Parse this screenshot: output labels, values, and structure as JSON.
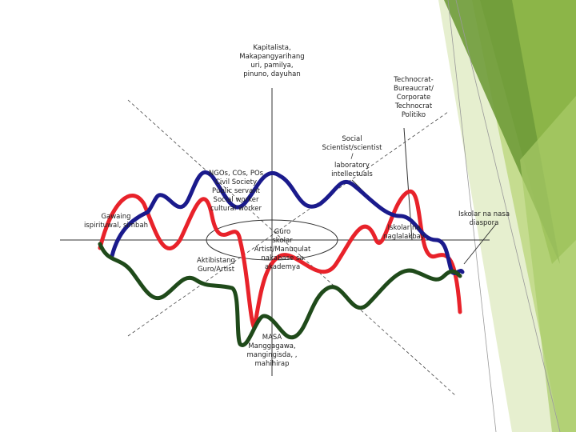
{
  "labels": [
    {
      "lines": [
        "Kapitalista,",
        "Makapangyarihang",
        "uri, pamilya,",
        "pinuno, dayuhan"
      ]
    },
    {
      "lines": [
        "Technocrat-",
        "Bureaucrat/",
        "Corporate",
        "Technocrat",
        "Politiko"
      ]
    },
    {
      "lines": [
        "Social",
        "Scientist/scientist",
        "/",
        "laboratory",
        "intellectuals"
      ]
    },
    {
      "lines": [
        "NGOs, COs, POs",
        "Civil Society",
        "Public servant",
        "Social worker",
        "cultural worker"
      ]
    },
    {
      "lines": [
        "Gawaing",
        "ispirituwal, simbah"
      ]
    },
    {
      "lines": [
        "Iskolar na nasa",
        "diaspora"
      ]
    },
    {
      "lines": [
        "Iskolar na",
        "naglalakbay"
      ]
    },
    {
      "lines": [
        "Aktibistang",
        "Guro/Artist"
      ]
    },
    {
      "lines": [
        "Guro",
        "skolar",
        "Artist/Manunulat",
        "nakabase sa",
        "akademya"
      ]
    },
    {
      "lines": [
        "MASA",
        "Manggagawa,",
        "mangingisda, ,",
        "mahihirap"
      ]
    }
  ]
}
